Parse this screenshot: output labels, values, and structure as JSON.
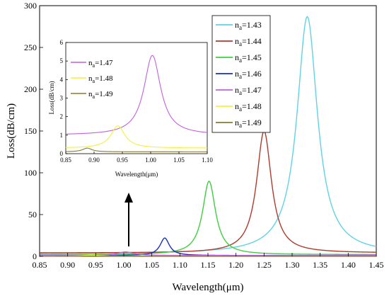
{
  "chart_data": [
    {
      "type": "line",
      "role": "main",
      "title": "",
      "xlabel": "Wavelength(μm)",
      "ylabel": "Loss(dB/cm)",
      "xlim": [
        0.85,
        1.45
      ],
      "ylim": [
        0,
        300
      ],
      "x_ticks": [
        "0.85",
        "0.90",
        "0.95",
        "1.00",
        "1.05",
        "1.10",
        "1.15",
        "1.20",
        "1.25",
        "1.30",
        "1.35",
        "1.40",
        "1.45"
      ],
      "y_ticks": [
        "0",
        "50",
        "100",
        "150",
        "200",
        "250",
        "300"
      ],
      "legend_position": "top-right",
      "series": [
        {
          "name": "n",
          "sub": "a",
          "suffix": "=1.43",
          "color": "#5fd3e3",
          "peak_x": 1.327,
          "peak_y": 287,
          "width": 0.022,
          "base": 3
        },
        {
          "name": "n",
          "sub": "a",
          "suffix": "=1.44",
          "color": "#b03a2e",
          "peak_x": 1.25,
          "peak_y": 150,
          "width": 0.016,
          "base": 4
        },
        {
          "name": "n",
          "sub": "a",
          "suffix": "=1.45",
          "color": "#3ecf3e",
          "peak_x": 1.152,
          "peak_y": 90,
          "width": 0.014,
          "base": 2
        },
        {
          "name": "n",
          "sub": "a",
          "suffix": "=1.46",
          "color": "#1a2fbf",
          "peak_x": 1.073,
          "peak_y": 22,
          "width": 0.01,
          "base": 1
        },
        {
          "name": "n",
          "sub": "a",
          "suffix": "=1.47",
          "color": "#c060e0",
          "peak_x": 1.003,
          "peak_y": 5.3,
          "width": 0.018,
          "base": 1
        },
        {
          "name": "n",
          "sub": "a",
          "suffix": "=1.48",
          "color": "#f2f23a",
          "peak_x": 0.942,
          "peak_y": 1.5,
          "width": 0.015,
          "base": 0.3
        },
        {
          "name": "n",
          "sub": "a",
          "suffix": "=1.49",
          "color": "#8a7a30",
          "peak_x": 0.888,
          "peak_y": 0.3,
          "width": 0.01,
          "base": 0.1
        }
      ]
    },
    {
      "type": "line",
      "role": "inset",
      "title": "",
      "xlabel": "Wavelength(μm)",
      "ylabel": "Loss(dB/cm)",
      "xlim": [
        0.85,
        1.1
      ],
      "ylim": [
        0,
        6
      ],
      "x_ticks": [
        "0.85",
        "0.90",
        "0.95",
        "1.00",
        "1.05",
        "1.10"
      ],
      "y_ticks": [
        "0",
        "1",
        "2",
        "3",
        "4",
        "5",
        "6"
      ],
      "legend_position": "top-left",
      "series": [
        {
          "name": "n",
          "sub": "a",
          "suffix": "=1.47",
          "color": "#c060e0",
          "peak_x": 1.003,
          "peak_y": 5.3,
          "width": 0.018,
          "base": 1
        },
        {
          "name": "n",
          "sub": "a",
          "suffix": "=1.48",
          "color": "#f2f23a",
          "peak_x": 0.942,
          "peak_y": 1.5,
          "width": 0.015,
          "base": 0.3
        },
        {
          "name": "n",
          "sub": "a",
          "suffix": "=1.49",
          "color": "#8a7a30",
          "peak_x": 0.888,
          "peak_y": 0.3,
          "width": 0.01,
          "base": 0.1
        }
      ]
    }
  ]
}
